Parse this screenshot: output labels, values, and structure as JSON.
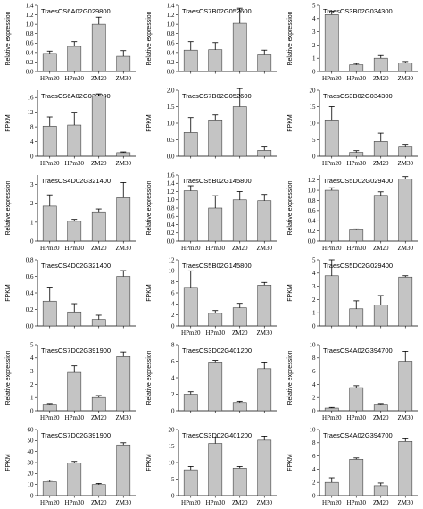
{
  "chart_data": [
    {
      "type": "bar",
      "title": "TraesCS6A02G029800",
      "ylabel": "Relative expression",
      "categories": [
        "HPm20",
        "HPm30",
        "ZM20",
        "ZM30"
      ],
      "values": [
        0.38,
        0.53,
        1.0,
        0.32
      ],
      "errors": [
        0.05,
        0.1,
        0.15,
        0.12
      ],
      "ylim": [
        0,
        1.4
      ],
      "yticks": [
        "0.0",
        "0.2",
        "0.4",
        "0.6",
        "0.8",
        "1.0",
        "1.2",
        "1.4"
      ],
      "show_xticklabels": true
    },
    {
      "type": "bar",
      "title": "TraesCS7B02G052600",
      "ylabel": "Relative expression",
      "categories": [
        "HPm20",
        "HPm30",
        "ZM20",
        "ZM30"
      ],
      "values": [
        0.45,
        0.46,
        1.02,
        0.35
      ],
      "errors": [
        0.18,
        0.15,
        0.32,
        0.1
      ],
      "ylim": [
        0,
        1.4
      ],
      "yticks": [
        "0.0",
        "0.2",
        "0.4",
        "0.6",
        "0.8",
        "1.0",
        "1.2",
        "1.4"
      ],
      "show_xticklabels": false
    },
    {
      "type": "bar",
      "title": "TraesCS3B02G034300",
      "ylabel": "Relative expression",
      "categories": [
        "HPm20",
        "HPm30",
        "ZM20",
        "ZM30"
      ],
      "values": [
        4.3,
        0.5,
        1.0,
        0.65
      ],
      "errors": [
        0.25,
        0.1,
        0.2,
        0.1
      ],
      "ylim": [
        0,
        5
      ],
      "yticks": [
        "0",
        "1",
        "2",
        "3",
        "4",
        "5"
      ],
      "show_xticklabels": true
    },
    {
      "type": "bar",
      "title": "TraesCS6A02G029800",
      "ylabel": "FPKM",
      "categories": [
        "HPm20",
        "HPm30",
        "ZM20",
        "ZM30"
      ],
      "values": [
        8.2,
        8.5,
        16.5,
        1.0
      ],
      "errors": [
        2.5,
        3.5,
        0.5,
        0.2
      ],
      "ylim": [
        0,
        18
      ],
      "yticks": [
        "0",
        "4",
        "8",
        "12",
        "16"
      ],
      "show_xticklabels": true
    },
    {
      "type": "bar",
      "title": "TraesCS7B02G052600",
      "ylabel": "FPKM",
      "categories": [
        "HPm20",
        "HPm30",
        "ZM20",
        "ZM30"
      ],
      "values": [
        0.72,
        1.1,
        1.5,
        0.18
      ],
      "errors": [
        0.45,
        0.15,
        0.55,
        0.1
      ],
      "ylim": [
        0,
        2
      ],
      "yticks": [
        "0.0",
        "0.5",
        "1.0",
        "1.5",
        "2.0"
      ],
      "show_xticklabels": false
    },
    {
      "type": "bar",
      "title": "TraesCS3B02G034300",
      "ylabel": "FPKM",
      "categories": [
        "HPm20",
        "HPm30",
        "ZM20",
        "ZM30"
      ],
      "values": [
        11,
        1.2,
        4.5,
        2.8
      ],
      "errors": [
        4,
        0.5,
        2.5,
        0.8
      ],
      "ylim": [
        0,
        20
      ],
      "yticks": [
        "0",
        "5",
        "10",
        "15",
        "20"
      ],
      "show_xticklabels": true
    },
    {
      "type": "bar",
      "title": "TraesCS4D02G321400",
      "ylabel": "Relative expression",
      "categories": [
        "HPm20",
        "HPm30",
        "ZM20",
        "ZM30"
      ],
      "values": [
        1.85,
        1.05,
        1.55,
        2.3
      ],
      "errors": [
        0.6,
        0.1,
        0.15,
        0.8
      ],
      "ylim": [
        0,
        3.5
      ],
      "yticks": [
        "0",
        "1",
        "2",
        "3"
      ],
      "show_xticklabels": true
    },
    {
      "type": "bar",
      "title": "TraesCS5B02G145800",
      "ylabel": "Relative expression",
      "categories": [
        "HPm20",
        "HPm30",
        "ZM20",
        "ZM30"
      ],
      "values": [
        1.22,
        0.8,
        1.0,
        0.98
      ],
      "errors": [
        0.12,
        0.3,
        0.2,
        0.15
      ],
      "ylim": [
        0,
        1.6
      ],
      "yticks": [
        "0.0",
        "0.2",
        "0.4",
        "0.6",
        "0.8",
        "1.0",
        "1.2",
        "1.4",
        "1.6"
      ],
      "show_xticklabels": true
    },
    {
      "type": "bar",
      "title": "TraesCS5D02G029400",
      "ylabel": "Relative expression",
      "categories": [
        "HPm20",
        "HPm30",
        "ZM20",
        "ZM30"
      ],
      "values": [
        1.0,
        0.22,
        0.9,
        1.22
      ],
      "errors": [
        0.05,
        0.02,
        0.07,
        0.05
      ],
      "ylim": [
        0,
        1.3
      ],
      "yticks": [
        "0.0",
        "0.2",
        "0.4",
        "0.6",
        "0.8",
        "1.0",
        "1.2"
      ],
      "show_xticklabels": true
    },
    {
      "type": "bar",
      "title": "TraesCS4D02G321400",
      "ylabel": "FPKM",
      "categories": [
        "HPm20",
        "HPm30",
        "ZM20",
        "ZM30"
      ],
      "values": [
        0.3,
        0.17,
        0.08,
        0.6
      ],
      "errors": [
        0.17,
        0.1,
        0.05,
        0.07
      ],
      "ylim": [
        0,
        0.8
      ],
      "yticks": [
        "0.0",
        "0.2",
        "0.4",
        "0.6",
        "0.8"
      ],
      "show_xticklabels": false
    },
    {
      "type": "bar",
      "title": "TraesCS5B02G145800",
      "ylabel": "FPKM",
      "categories": [
        "HPm20",
        "HPm30",
        "ZM20",
        "ZM30"
      ],
      "values": [
        7,
        2.3,
        3.3,
        7.4
      ],
      "errors": [
        3,
        0.5,
        0.8,
        0.5
      ],
      "ylim": [
        0,
        12
      ],
      "yticks": [
        "0",
        "2",
        "4",
        "6",
        "8",
        "10",
        "12"
      ],
      "show_xticklabels": true
    },
    {
      "type": "bar",
      "title": "TraesCS5D02G029400",
      "ylabel": "FPKM",
      "categories": [
        "HPm20",
        "HPm30",
        "ZM20",
        "ZM30"
      ],
      "values": [
        3.8,
        1.3,
        1.6,
        3.7
      ],
      "errors": [
        1.2,
        0.6,
        0.7,
        0.1
      ],
      "ylim": [
        0,
        5
      ],
      "yticks": [
        "0",
        "1",
        "2",
        "3",
        "4",
        "5"
      ],
      "show_xticklabels": false
    },
    {
      "type": "bar",
      "title": "TraesCS7D02G391900",
      "ylabel": "Relative expression",
      "categories": [
        "HPm20",
        "HPm30",
        "ZM20",
        "ZM30"
      ],
      "values": [
        0.5,
        2.9,
        1.0,
        4.1
      ],
      "errors": [
        0.05,
        0.5,
        0.15,
        0.35
      ],
      "ylim": [
        0,
        5
      ],
      "yticks": [
        "0",
        "1",
        "2",
        "3",
        "4",
        "5"
      ],
      "show_xticklabels": true
    },
    {
      "type": "bar",
      "title": "TraesCS3D02G401200",
      "ylabel": "Relative expression",
      "categories": [
        "HPm20",
        "HPm30",
        "ZM20",
        "ZM30"
      ],
      "values": [
        2.0,
        5.9,
        1.0,
        5.1
      ],
      "errors": [
        0.3,
        0.2,
        0.15,
        0.8
      ],
      "ylim": [
        0,
        8
      ],
      "yticks": [
        "0",
        "2",
        "4",
        "6",
        "8"
      ],
      "show_xticklabels": false
    },
    {
      "type": "bar",
      "title": "TraesCS4A02G394700",
      "ylabel": "Relative expression",
      "categories": [
        "HPm20",
        "HPm30",
        "ZM20",
        "ZM30"
      ],
      "values": [
        0.4,
        3.5,
        1.0,
        7.5
      ],
      "errors": [
        0.1,
        0.3,
        0.1,
        1.5
      ],
      "ylim": [
        0,
        10
      ],
      "yticks": [
        "0",
        "2",
        "4",
        "6",
        "8",
        "10"
      ],
      "show_xticklabels": true
    },
    {
      "type": "bar",
      "title": "TraesCS7D02G391900",
      "ylabel": "FPKM",
      "categories": [
        "HPm20",
        "HPm30",
        "ZM20",
        "ZM30"
      ],
      "values": [
        12.5,
        29.5,
        10,
        46
      ],
      "errors": [
        1.5,
        1.5,
        1,
        2
      ],
      "ylim": [
        0,
        60
      ],
      "yticks": [
        "0",
        "10",
        "20",
        "30",
        "40",
        "50",
        "60"
      ],
      "show_xticklabels": true
    },
    {
      "type": "bar",
      "title": "TraesCS3D02G401200",
      "ylabel": "FPKM",
      "categories": [
        "HPm20",
        "HPm30",
        "ZM20",
        "ZM30"
      ],
      "values": [
        7.8,
        15.8,
        8.3,
        16.8
      ],
      "errors": [
        1,
        1.8,
        0.5,
        1.2
      ],
      "ylim": [
        0,
        20
      ],
      "yticks": [
        "0",
        "5",
        "10",
        "15",
        "20"
      ],
      "show_xticklabels": true
    },
    {
      "type": "bar",
      "title": "TraesCS4A02G394700",
      "ylabel": "FPKM",
      "categories": [
        "HPm20",
        "HPm30",
        "ZM20",
        "ZM30"
      ],
      "values": [
        2,
        5.5,
        1.5,
        8.2
      ],
      "errors": [
        0.7,
        0.2,
        0.4,
        0.4
      ],
      "ylim": [
        0,
        10
      ],
      "yticks": [
        "0",
        "2",
        "4",
        "6",
        "8",
        "10"
      ],
      "show_xticklabels": true
    }
  ],
  "colors": {
    "bar_fill": "#c4c4c4",
    "bar_stroke": "#444444",
    "axis": "#000000"
  }
}
